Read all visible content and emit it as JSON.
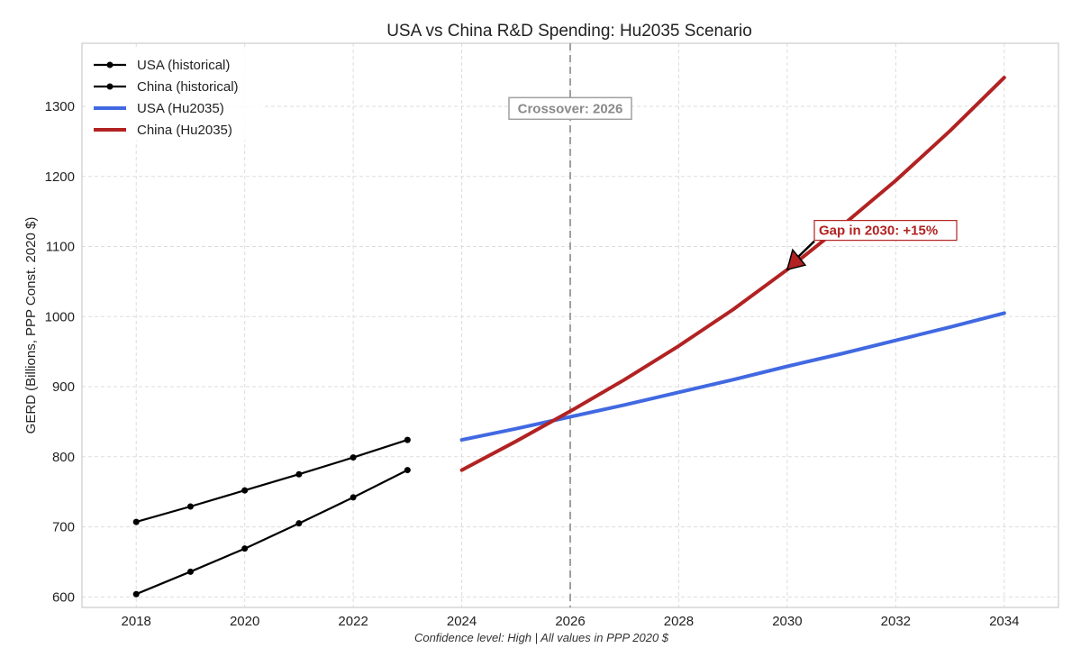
{
  "chart_data": {
    "type": "line",
    "title": "USA vs China R&D Spending: Hu2035 Scenario",
    "xlabel": "",
    "ylabel": "GERD (Billions, PPP Const. 2020 $)",
    "footnote": "Confidence level: High | All values in PPP 2020 $",
    "xlim": [
      2017,
      2035
    ],
    "ylim": [
      585,
      1390
    ],
    "x_ticks": [
      2018,
      2020,
      2022,
      2024,
      2026,
      2028,
      2030,
      2032,
      2034
    ],
    "y_ticks": [
      600,
      700,
      800,
      900,
      1000,
      1100,
      1200,
      1300
    ],
    "grid": true,
    "legend_position": "top-left",
    "series": [
      {
        "name": "USA (historical)",
        "color": "#000000",
        "style": "line-markers",
        "x": [
          2018,
          2019,
          2020,
          2021,
          2022,
          2023
        ],
        "y": [
          707,
          729,
          752,
          775,
          799,
          824
        ]
      },
      {
        "name": "China (historical)",
        "color": "#000000",
        "style": "line-markers",
        "x": [
          2018,
          2019,
          2020,
          2021,
          2022,
          2023
        ],
        "y": [
          604,
          636,
          669,
          705,
          742,
          781
        ]
      },
      {
        "name": "USA (Hu2035)",
        "color": "#4169e1",
        "style": "thick-line",
        "x": [
          2024,
          2025,
          2026,
          2027,
          2028,
          2029,
          2030,
          2031,
          2032,
          2033,
          2034
        ],
        "y": [
          824,
          840,
          857,
          874,
          892,
          910,
          929,
          947,
          966,
          985,
          1005
        ]
      },
      {
        "name": "China (Hu2035)",
        "color": "#b22222",
        "style": "thick-line",
        "x": [
          2024,
          2025,
          2026,
          2027,
          2028,
          2029,
          2030,
          2031,
          2032,
          2033,
          2034
        ],
        "y": [
          781,
          822,
          865,
          910,
          958,
          1010,
          1067,
          1129,
          1194,
          1265,
          1341
        ]
      }
    ],
    "crossover": {
      "x": 2026,
      "label": "Crossover: 2026",
      "label_y": 1297,
      "color": "#a0a0a0"
    },
    "gap_annotation": {
      "label": "Gap in 2030: +15%",
      "point_x": 2030,
      "point_y": 1067,
      "text_x": 2030.5,
      "text_y": 1123,
      "color": "#b22222"
    }
  }
}
